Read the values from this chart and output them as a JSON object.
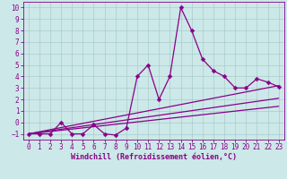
{
  "xlabel": "Windchill (Refroidissement éolien,°C)",
  "xlim": [
    -0.5,
    23.5
  ],
  "ylim": [
    -1.5,
    10.5
  ],
  "xticks": [
    0,
    1,
    2,
    3,
    4,
    5,
    6,
    7,
    8,
    9,
    10,
    11,
    12,
    13,
    14,
    15,
    16,
    17,
    18,
    19,
    20,
    21,
    22,
    23
  ],
  "yticks": [
    -1,
    0,
    1,
    2,
    3,
    4,
    5,
    6,
    7,
    8,
    9,
    10
  ],
  "background_color": "#cce8e8",
  "grid_color": "#aacccc",
  "line_color": "#880088",
  "series_zigzag_x": [
    0,
    1,
    2,
    3,
    4,
    5,
    6,
    7,
    8,
    9,
    10,
    11,
    12,
    13,
    14,
    15,
    16,
    17,
    18,
    19,
    20,
    21,
    22,
    23
  ],
  "series_zigzag_y": [
    -1,
    -1,
    -1,
    0,
    -1,
    -1,
    -0.2,
    -1,
    -1.1,
    -0.5,
    4,
    5,
    2,
    4,
    10,
    8,
    5.5,
    4.5,
    4,
    3,
    3,
    3.8,
    3.5,
    3.1
  ],
  "series_line1_x": [
    0,
    23
  ],
  "series_line1_y": [
    -1,
    3.2
  ],
  "series_line2_x": [
    0,
    23
  ],
  "series_line2_y": [
    -1,
    2.1
  ],
  "series_line3_x": [
    0,
    23
  ],
  "series_line3_y": [
    -1,
    1.4
  ],
  "tick_fontsize": 5.5,
  "label_fontsize": 6,
  "markersize": 2.5,
  "linewidth": 0.9
}
